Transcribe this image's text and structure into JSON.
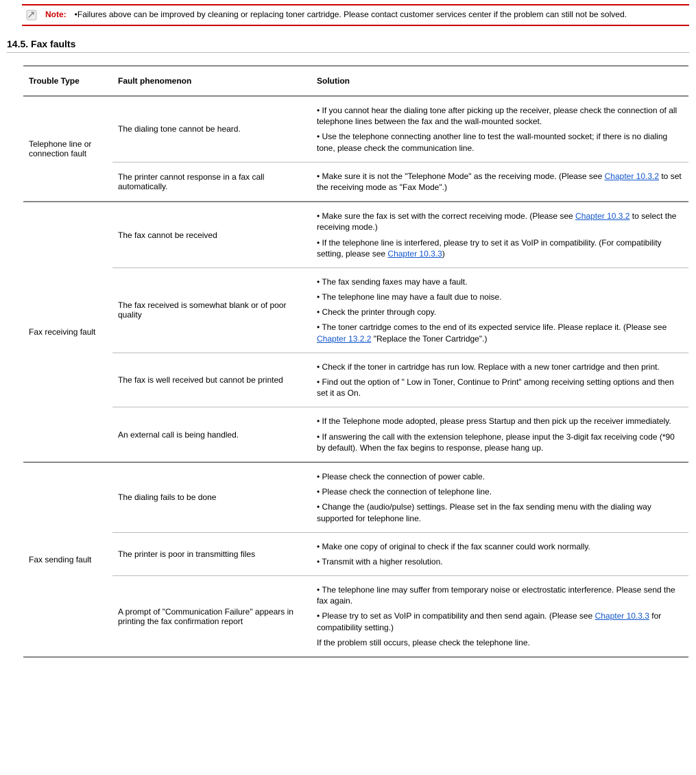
{
  "note": {
    "label": "Note:",
    "text": "•Failures above can be improved by cleaning or replacing toner cartridge. Please contact customer services center if the problem can still not be solved.",
    "border_color": "#cc0000"
  },
  "section_title": "14.5. Fax faults",
  "columns": {
    "type": "Trouble Type",
    "phenomenon": "Fault phenomenon",
    "solution": "Solution"
  },
  "links": {
    "ch1032": "Chapter 10.3.2",
    "ch1033": "Chapter 10.3.3",
    "ch1322": "Chapter 13.2.2"
  },
  "groups": [
    {
      "type": "Telephone line or connection fault",
      "rows": [
        {
          "phenomenon": "The dialing tone cannot be heard.",
          "solutions": [
            {
              "text": "• If you cannot hear the dialing tone after picking up the receiver, please check the connection of all telephone lines between the fax and the wall-mounted socket."
            },
            {
              "text": "• Use the telephone connecting another line to test the wall-mounted socket; if there is no dialing tone, please check the communication line."
            }
          ]
        },
        {
          "phenomenon": "The printer cannot response in a fax call automatically.",
          "solutions": [
            {
              "pre": "• Make sure it is not the \"Telephone Mode\" as the receiving mode. (Please see ",
              "link": "ch1032",
              "post": " to set the receiving mode as \"Fax Mode\".)"
            }
          ]
        }
      ]
    },
    {
      "type": "Fax receiving fault",
      "rows": [
        {
          "phenomenon": "The fax cannot be received",
          "solutions": [
            {
              "pre": "• Make sure the fax is set with the correct receiving mode. (Please see ",
              "link": "ch1032",
              "post": " to select the receiving mode.)"
            },
            {
              "pre": "• If the telephone line is interfered, please try to set it as VoIP in compatibility. (For compatibility setting, please see ",
              "link": "ch1033",
              "post": ")"
            }
          ]
        },
        {
          "phenomenon": "The fax received is somewhat blank or of poor quality",
          "solutions": [
            {
              "text": "• The fax sending faxes may have a fault."
            },
            {
              "text": "• The telephone line may have a fault due to noise."
            },
            {
              "text": "• Check the printer through copy."
            },
            {
              "pre": "• The toner cartridge comes to the end of its expected service life. Please replace it. (Please see ",
              "link": "ch1322",
              "post": " \"Replace the Toner Cartridge\".)"
            }
          ]
        },
        {
          "phenomenon": "The fax is well received but cannot be printed",
          "solutions": [
            {
              "text": "• Check if the toner in cartridge has run low. Replace with a new toner cartridge and then print."
            },
            {
              "text": "• Find out the option of \" Low in Toner, Continue to Print\" among receiving setting options and then set it as On."
            }
          ]
        },
        {
          "phenomenon": "An external call is being handled.",
          "solutions": [
            {
              "text": "• If the Telephone mode adopted, please press Startup and then pick up the receiver immediately."
            },
            {
              "text": "• If answering the call with the extension telephone, please input the 3-digit fax receiving code (*90 by default). When the fax begins to response, please hang up."
            }
          ]
        }
      ]
    },
    {
      "type": "Fax sending fault",
      "rows": [
        {
          "phenomenon": "The dialing fails to be done",
          "solutions": [
            {
              "text": "• Please check the connection of power cable."
            },
            {
              "text": "• Please check the connection of telephone line."
            },
            {
              "text": "• Change the (audio/pulse) settings. Please set in the fax sending menu with the dialing way supported for telephone line."
            }
          ]
        },
        {
          "phenomenon": "The printer is poor in transmitting files",
          "solutions": [
            {
              "text": "• Make one copy of original to check if the fax scanner could work normally."
            },
            {
              "text": "• Transmit with a higher resolution."
            }
          ]
        },
        {
          "phenomenon": "A prompt of \"Communication Failure\" appears in printing the fax confirmation report",
          "solutions": [
            {
              "text": "• The telephone line may suffer from temporary noise or electrostatic interference. Please send the fax again."
            },
            {
              "pre": "• Please try to set as VoIP in compatibility and then send again. (Please see ",
              "link": "ch1033",
              "post": " for compatibility setting.)"
            },
            {
              "text": "If the problem still occurs, please check the telephone line."
            }
          ]
        }
      ]
    }
  ]
}
